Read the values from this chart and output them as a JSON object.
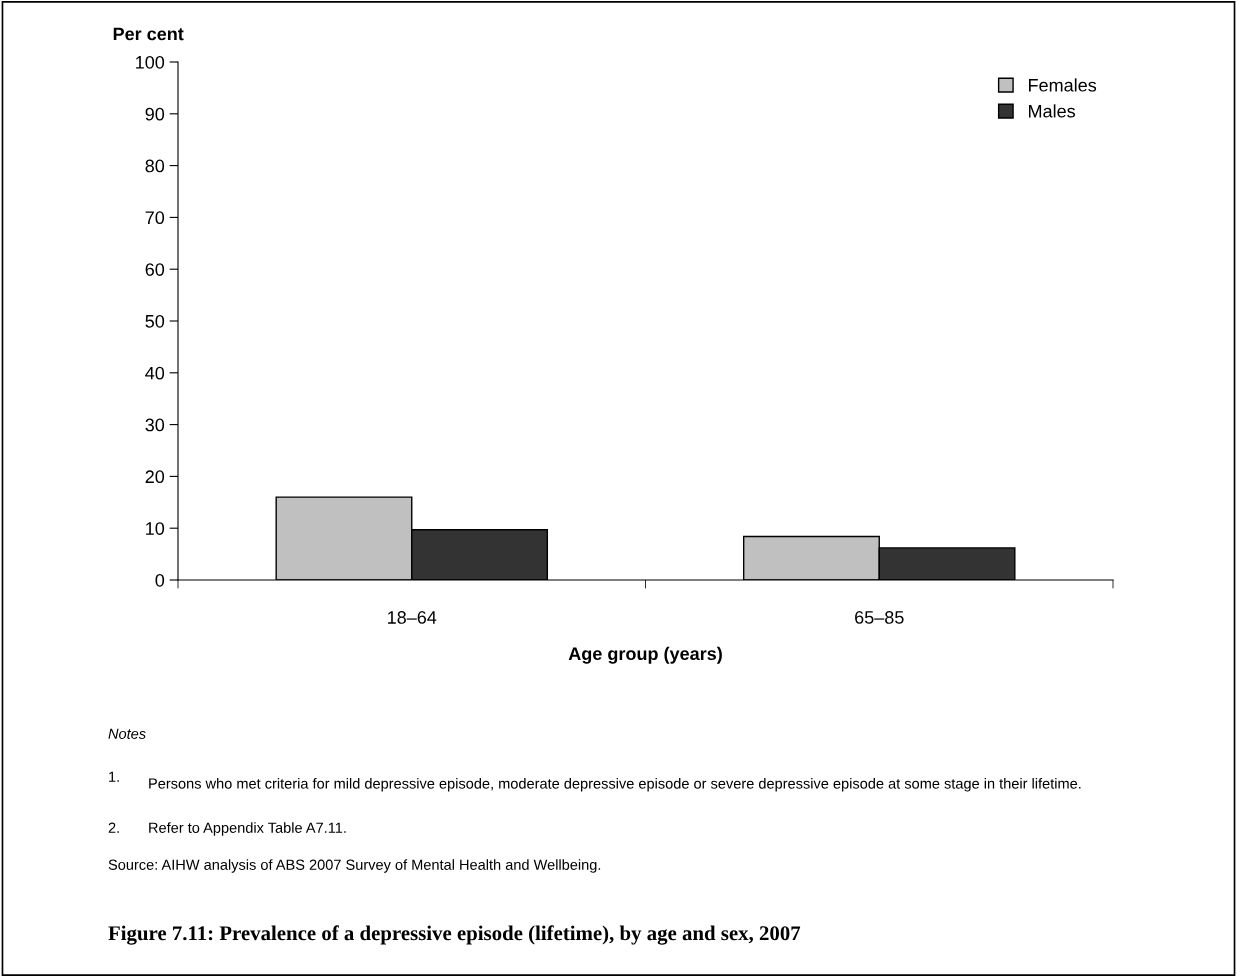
{
  "chart_data": {
    "type": "bar",
    "title": "Figure 7.11: Prevalence of a depressive episode (lifetime), by age and sex, 2007",
    "ylabel": "Per cent",
    "xlabel": "Age group (years)",
    "categories": [
      "18–64",
      "65–85"
    ],
    "series": [
      {
        "name": "Females",
        "color": "#c0c0c0",
        "values": [
          16,
          8.4
        ]
      },
      {
        "name": "Males",
        "color": "#333333",
        "values": [
          9.7,
          6.2
        ]
      }
    ],
    "ylim": [
      0,
      100
    ],
    "yticks": [
      0,
      10,
      20,
      30,
      40,
      50,
      60,
      70,
      80,
      90,
      100
    ],
    "grid": false,
    "legend": "top right",
    "annotations": [
      "Notes",
      "1.\tPersons who met criteria for mild depressive episode, moderate depressive episode or severe depressive episode at some stage in their lifetime.",
      "2.\tRefer to Appendix Table A7.11.",
      "Source: AIHW analysis of ABS 2007 Survey of Mental Health and Wellbeing."
    ]
  }
}
